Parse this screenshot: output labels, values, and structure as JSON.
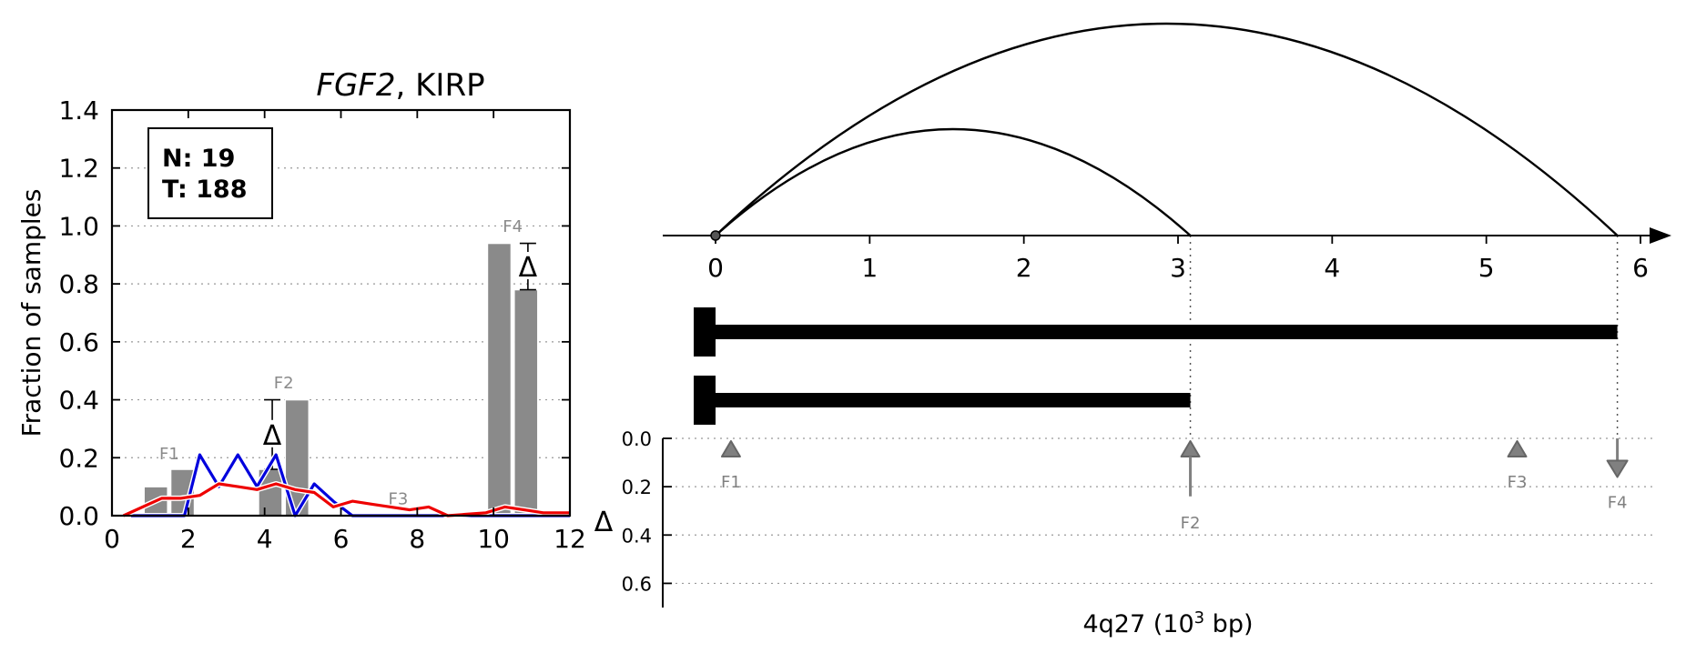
{
  "chart_data": [
    {
      "type": "bar",
      "title_gene": "FGF2",
      "title_rest": ", KIRP",
      "xlabel": "",
      "ylabel": "Fraction of samples",
      "xlim": [
        0,
        12
      ],
      "ylim": [
        0,
        1.4
      ],
      "x_ticks": [
        "0",
        "2",
        "4",
        "6",
        "8",
        "10",
        "12"
      ],
      "y_ticks": [
        "0.0",
        "0.2",
        "0.4",
        "0.6",
        "0.8",
        "1.0",
        "1.2",
        "1.4"
      ],
      "grid": "horizontal dotted",
      "legend_box": {
        "line1": "N: 19",
        "line2": "T: 188"
      },
      "bars": [
        {
          "x": 1.15,
          "value": 0.1
        },
        {
          "x": 1.85,
          "value": 0.16
        },
        {
          "x": 4.15,
          "value": 0.16
        },
        {
          "x": 4.85,
          "value": 0.4
        },
        {
          "x": 10.15,
          "value": 0.94
        },
        {
          "x": 10.85,
          "value": 0.78
        }
      ],
      "bar_width": 0.62,
      "feature_labels": [
        {
          "text": "F1",
          "x": 1.5,
          "y": 0.195
        },
        {
          "text": "F2",
          "x": 4.5,
          "y": 0.44
        },
        {
          "text": "F3",
          "x": 7.5,
          "y": 0.04
        },
        {
          "text": "F4",
          "x": 10.5,
          "y": 0.98
        }
      ],
      "delta_markers": [
        {
          "text": "Δ",
          "x": 4.2,
          "y_low": 0.16,
          "y_high": 0.4
        },
        {
          "text": "Δ",
          "x": 10.9,
          "y_low": 0.78,
          "y_high": 0.94
        }
      ],
      "series": [
        {
          "color": "#0000dd",
          "x": [
            0.5,
            1.5,
            1.9,
            2.3,
            2.8,
            3.3,
            3.8,
            4.3,
            4.8,
            5.3,
            5.8,
            6.3,
            7.3,
            8.3,
            9.3,
            10.3,
            11.3,
            12
          ],
          "y": [
            0,
            0,
            0,
            0.21,
            0.1,
            0.21,
            0.1,
            0.21,
            0,
            0.11,
            0.05,
            0,
            0,
            0,
            0,
            0,
            0,
            0
          ]
        },
        {
          "color": "#ee0000",
          "x": [
            0.3,
            1.3,
            1.8,
            2.3,
            2.8,
            3.3,
            3.8,
            4.3,
            4.8,
            5.3,
            5.8,
            6.3,
            6.8,
            7.3,
            7.8,
            8.3,
            8.8,
            9.3,
            9.8,
            10.3,
            10.8,
            11.3,
            12
          ],
          "y": [
            0,
            0.06,
            0.06,
            0.07,
            0.11,
            0.1,
            0.09,
            0.11,
            0.09,
            0.08,
            0.03,
            0.05,
            0.04,
            0.03,
            0.02,
            0.03,
            0,
            0.005,
            0.01,
            0.03,
            0.02,
            0.01,
            0.01
          ]
        }
      ]
    },
    {
      "type": "arc-diagram",
      "xlabel_prefix": "4q27 (10",
      "xlabel_sup": "3",
      "xlabel_suffix": " bp)",
      "xlim": [
        0,
        6
      ],
      "x_ticks": [
        "0",
        "1",
        "2",
        "3",
        "4",
        "5",
        "6"
      ],
      "origin": 0,
      "arcs": [
        {
          "from": 0,
          "to": 3.08,
          "height": "low"
        },
        {
          "from": 0,
          "to": 5.85,
          "height": "high"
        }
      ],
      "transcripts": [
        {
          "start": 0,
          "end": 5.85
        },
        {
          "start": 0,
          "end": 3.08
        }
      ],
      "delta_axis": {
        "label": "Δ",
        "ylim": [
          0,
          0.7
        ],
        "ticks": [
          "0.0",
          "0.2",
          "0.4",
          "0.6"
        ],
        "features": [
          {
            "label": "F1",
            "x": 0.1,
            "delta": 0,
            "kind": "up"
          },
          {
            "label": "F2",
            "x": 3.08,
            "delta": 0.24,
            "kind": "up"
          },
          {
            "label": "F3",
            "x": 5.2,
            "delta": 0,
            "kind": "up"
          },
          {
            "label": "F4",
            "x": 5.85,
            "delta": 0.16,
            "kind": "down"
          }
        ]
      }
    }
  ]
}
